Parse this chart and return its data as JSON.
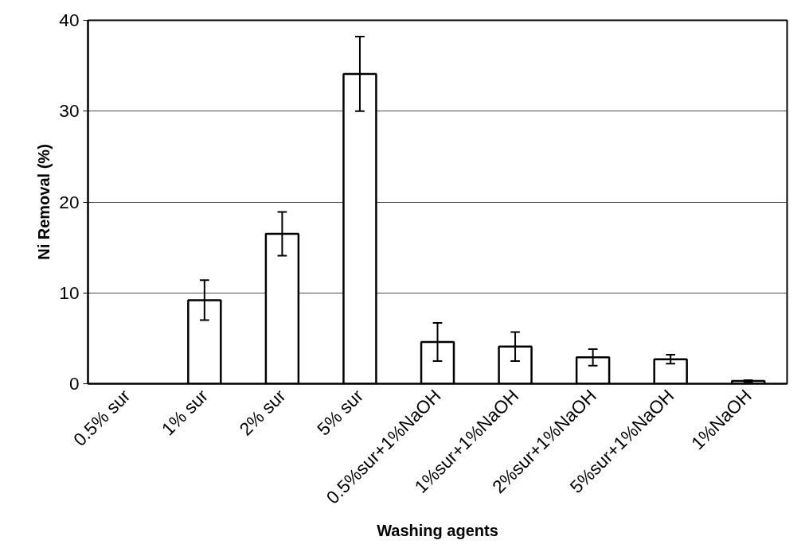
{
  "chart_data": {
    "type": "bar",
    "xlabel": "Washing agents",
    "ylabel": "Ni Removal (%)",
    "categories": [
      "0.5% sur",
      "1% sur",
      "2% sur",
      "5% sur",
      "0.5%sur+1%NaOH",
      "1%sur+1%NaOH",
      "2%sur+1%NaOH",
      "5%sur+1%NaOH",
      "1%NaOH"
    ],
    "values": [
      0,
      9.2,
      16.5,
      34.1,
      4.6,
      4.1,
      2.9,
      2.7,
      0.3
    ],
    "errors": [
      null,
      2.2,
      2.4,
      4.1,
      2.1,
      1.6,
      0.9,
      0.5,
      0.1
    ],
    "color": "#ffffff",
    "ylim": [
      0,
      40
    ],
    "yticks": [
      0,
      10,
      20,
      30,
      40
    ],
    "grid": "y"
  }
}
